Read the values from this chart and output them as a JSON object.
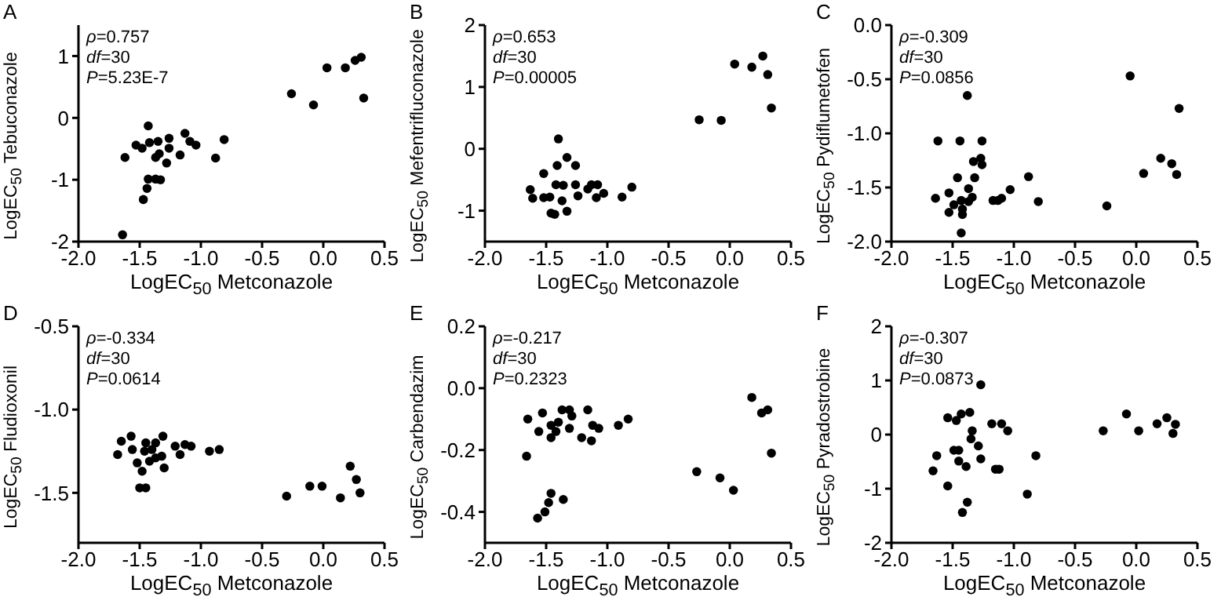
{
  "chart_data": [
    {
      "type": "scatter",
      "title": "A",
      "xlabel": "LogEC$_{50}$ Metconazole",
      "ylabel": "LogEC$_{50}$ Tebuconazole",
      "annotations": [
        "ρ=0.757",
        "df=30",
        "P=5.23E-7"
      ],
      "color": "#000000",
      "marker": "circle",
      "x": [
        -1.64,
        -1.62,
        -1.53,
        -1.48,
        -1.43,
        -1.42,
        -1.47,
        -1.44,
        -1.43,
        -1.37,
        -1.33,
        -1.35,
        -1.37,
        -1.34,
        -1.28,
        -1.26,
        -1.26,
        -1.17,
        -1.13,
        -1.09,
        -1.04,
        -0.88,
        -0.81,
        -0.26,
        -0.08,
        0.03,
        0.18,
        0.26,
        0.31,
        0.33
      ],
      "values": [
        -1.89,
        -0.64,
        -0.44,
        -0.49,
        -0.13,
        -0.4,
        -1.32,
        -1.14,
        -0.99,
        -0.99,
        -1.0,
        -0.38,
        -0.64,
        -0.58,
        -0.73,
        -0.49,
        -0.33,
        -0.6,
        -0.25,
        -0.38,
        -0.44,
        -0.65,
        -0.35,
        0.39,
        0.21,
        0.81,
        0.81,
        0.93,
        0.98,
        0.32
      ],
      "xlim": [
        -2,
        0.5
      ],
      "xticks": [
        {
          "value": -2,
          "label": "-2.0"
        },
        {
          "value": -1.5,
          "label": "-1.5"
        },
        {
          "value": -1,
          "label": "-1.0"
        },
        {
          "value": -0.5,
          "label": "-0.5"
        },
        {
          "value": 0,
          "label": "0.0"
        },
        {
          "value": 0.5,
          "label": "0.5"
        }
      ],
      "ylim": [
        -2,
        1.5
      ],
      "yticks": [
        -2,
        -1,
        0,
        1
      ]
    },
    {
      "type": "scatter",
      "title": "B",
      "xlabel": "LogEC$_{50}$ Metconazole",
      "ylabel": "LogEC$_{50}$ Mefentrifluconazole",
      "annotations": [
        "ρ=0.653",
        "df=30",
        "P=0.00005"
      ],
      "color": "#000000",
      "marker": "circle",
      "x": [
        -1.63,
        -1.61,
        -1.52,
        -1.52,
        -1.47,
        -1.46,
        -1.43,
        -1.41,
        -1.4,
        -1.42,
        -1.37,
        -1.36,
        -1.33,
        -1.33,
        -1.26,
        -1.26,
        -1.24,
        -1.16,
        -1.13,
        -1.09,
        -1.08,
        -1.03,
        -0.88,
        -0.8,
        -0.25,
        -0.07,
        0.04,
        0.18,
        0.27,
        0.31,
        0.34
      ],
      "values": [
        -0.66,
        -0.8,
        -0.4,
        -0.79,
        -0.78,
        -1.04,
        -1.06,
        -0.27,
        0.16,
        -0.58,
        -0.84,
        -0.59,
        -0.14,
        -1.01,
        -0.27,
        -0.58,
        -0.76,
        -0.65,
        -0.58,
        -0.79,
        -0.58,
        -0.72,
        -0.78,
        -0.62,
        0.47,
        0.46,
        1.37,
        1.32,
        1.5,
        1.2,
        0.66
      ],
      "xlim": [
        -2,
        0.5
      ],
      "xticks": [
        {
          "value": -2,
          "label": "-2.0"
        },
        {
          "value": -1.5,
          "label": "-1.5"
        },
        {
          "value": -1,
          "label": "-1.0"
        },
        {
          "value": -0.5,
          "label": "-0.5"
        },
        {
          "value": 0,
          "label": "0.0"
        },
        {
          "value": 0.5,
          "label": "0.5"
        }
      ],
      "ylim": [
        -1.5,
        2
      ],
      "yticks": [
        -1,
        0,
        1,
        2
      ]
    },
    {
      "type": "scatter",
      "title": "C",
      "xlabel": "LogEC$_{50}$ Metconazole",
      "ylabel": "LogEC$_{50}$ Pydiflumetofen",
      "annotations": [
        "ρ=-0.309",
        "df=30",
        "P=0.0856"
      ],
      "color": "#000000",
      "marker": "circle",
      "x": [
        -1.64,
        -1.62,
        -1.53,
        -1.53,
        -1.49,
        -1.46,
        -1.44,
        -1.43,
        -1.42,
        -1.42,
        -1.43,
        -1.38,
        -1.37,
        -1.37,
        -1.34,
        -1.33,
        -1.32,
        -1.26,
        -1.27,
        -1.26,
        -1.17,
        -1.13,
        -1.1,
        -1.03,
        -0.88,
        -0.8,
        -0.24,
        -0.05,
        0.06,
        0.2,
        0.29,
        0.33,
        0.35
      ],
      "values": [
        -1.6,
        -1.07,
        -1.55,
        -1.73,
        -1.66,
        -1.41,
        -1.07,
        -1.62,
        -1.7,
        -1.75,
        -1.92,
        -0.65,
        -1.51,
        -1.63,
        -1.59,
        -1.26,
        -1.41,
        -1.07,
        -1.23,
        -1.29,
        -1.62,
        -1.62,
        -1.6,
        -1.52,
        -1.4,
        -1.63,
        -1.67,
        -0.47,
        -1.37,
        -1.23,
        -1.28,
        -1.38,
        -0.77
      ],
      "xlim": [
        -2,
        0.5
      ],
      "xticks": [
        {
          "value": -2,
          "label": "-2.0"
        },
        {
          "value": -1.5,
          "label": "-1.5"
        },
        {
          "value": -1,
          "label": "-1.0"
        },
        {
          "value": -0.5,
          "label": "-0.5"
        },
        {
          "value": 0,
          "label": "0.0"
        },
        {
          "value": 0.5,
          "label": "0.5"
        }
      ],
      "ylim": [
        -2,
        0
      ],
      "yticks": [
        {
          "value": -2,
          "label": "-2.0"
        },
        {
          "value": -1.5,
          "label": "-1.5"
        },
        {
          "value": -1,
          "label": "-1.0"
        },
        {
          "value": -0.5,
          "label": "-0.5"
        },
        {
          "value": 0,
          "label": "0.0"
        }
      ]
    },
    {
      "type": "scatter",
      "title": "D",
      "xlabel": "LogEC$_{50}$ Metconazole",
      "ylabel": "LogEC$_{50}$ Fludioxonil",
      "annotations": [
        "ρ=-0.334",
        "df=30",
        "P=0.0614"
      ],
      "color": "#000000",
      "marker": "circle",
      "x": [
        -1.68,
        -1.65,
        -1.57,
        -1.56,
        -1.52,
        -1.5,
        -1.45,
        -1.48,
        -1.46,
        -1.45,
        -1.42,
        -1.4,
        -1.37,
        -1.37,
        -1.32,
        -1.31,
        -1.3,
        -1.21,
        -1.17,
        -1.13,
        -1.08,
        -0.93,
        -0.85,
        -0.3,
        -0.11,
        -0.01,
        0.14,
        0.22,
        0.27,
        0.3
      ],
      "values": [
        -1.27,
        -1.19,
        -1.16,
        -1.24,
        -1.32,
        -1.47,
        -1.47,
        -1.37,
        -1.25,
        -1.2,
        -1.31,
        -1.24,
        -1.2,
        -1.29,
        -1.28,
        -1.16,
        -1.35,
        -1.22,
        -1.27,
        -1.21,
        -1.22,
        -1.25,
        -1.24,
        -1.52,
        -1.46,
        -1.46,
        -1.53,
        -1.34,
        -1.42,
        -1.5
      ],
      "xlim": [
        -2,
        0.5
      ],
      "xticks": [
        {
          "value": -2,
          "label": "-2.0"
        },
        {
          "value": -1.5,
          "label": "-1.5"
        },
        {
          "value": -1,
          "label": "-1.0"
        },
        {
          "value": -0.5,
          "label": "-0.5"
        },
        {
          "value": 0,
          "label": "0.0"
        },
        {
          "value": 0.5,
          "label": "0.5"
        }
      ],
      "ylim": [
        -1.8,
        -0.5
      ],
      "yticks": [
        {
          "value": -1.5,
          "label": "-1.5"
        },
        {
          "value": -1,
          "label": "-1.0"
        },
        {
          "value": -0.5,
          "label": "-0.5"
        }
      ]
    },
    {
      "type": "scatter",
      "title": "E",
      "xlabel": "LogEC$_{50}$ Metconazole",
      "ylabel": "LogEC$_{50}$ Carbendazim",
      "annotations": [
        "ρ=-0.217",
        "df=30",
        "P=0.2323"
      ],
      "color": "#000000",
      "marker": "circle",
      "x": [
        -1.66,
        -1.65,
        -1.56,
        -1.53,
        -1.57,
        -1.51,
        -1.48,
        -1.46,
        -1.46,
        -1.46,
        -1.42,
        -1.4,
        -1.37,
        -1.36,
        -1.31,
        -1.31,
        -1.29,
        -1.21,
        -1.16,
        -1.13,
        -1.12,
        -1.07,
        -0.91,
        -0.83,
        -0.27,
        -0.08,
        0.03,
        0.18,
        0.26,
        0.31,
        0.34
      ],
      "values": [
        -0.22,
        -0.1,
        -0.14,
        -0.08,
        -0.42,
        -0.4,
        -0.37,
        -0.34,
        -0.12,
        -0.16,
        -0.14,
        -0.11,
        -0.07,
        -0.36,
        -0.07,
        -0.13,
        -0.09,
        -0.16,
        -0.07,
        -0.17,
        -0.12,
        -0.13,
        -0.12,
        -0.1,
        -0.27,
        -0.29,
        -0.33,
        -0.03,
        -0.08,
        -0.07,
        -0.21
      ],
      "xlim": [
        -2,
        0.5
      ],
      "xticks": [
        {
          "value": -2,
          "label": "-2.0"
        },
        {
          "value": -1.5,
          "label": "-1.5"
        },
        {
          "value": -1,
          "label": "-1.0"
        },
        {
          "value": -0.5,
          "label": "-0.5"
        },
        {
          "value": 0,
          "label": "0.0"
        },
        {
          "value": 0.5,
          "label": "0.5"
        }
      ],
      "ylim": [
        -0.5,
        0.2
      ],
      "yticks": [
        {
          "value": -0.4,
          "label": "-0.4"
        },
        {
          "value": -0.2,
          "label": "-0.2"
        },
        {
          "value": 0,
          "label": "0.0"
        },
        {
          "value": 0.2,
          "label": "0.2"
        }
      ]
    },
    {
      "type": "scatter",
      "title": "F",
      "xlabel": "LogEC$_{50}$ Metconazole",
      "ylabel": "LogEC$_{50}$ Pyradostrobine",
      "annotations": [
        "ρ=-0.307",
        "df=30",
        "P=0.0873"
      ],
      "color": "#000000",
      "marker": "circle",
      "x": [
        -1.66,
        -1.63,
        -1.54,
        -1.54,
        -1.49,
        -1.47,
        -1.45,
        -1.45,
        -1.43,
        -1.42,
        -1.39,
        -1.38,
        -1.36,
        -1.35,
        -1.34,
        -1.29,
        -1.27,
        -1.27,
        -1.18,
        -1.15,
        -1.12,
        -1.1,
        -1.05,
        -0.89,
        -0.82,
        -0.27,
        -0.08,
        0.02,
        0.17,
        0.25,
        0.3,
        0.32
      ],
      "values": [
        -0.67,
        -0.39,
        0.31,
        -0.95,
        -0.29,
        0.26,
        -0.29,
        -0.49,
        0.38,
        -1.44,
        -0.59,
        -1.25,
        0.41,
        -0.08,
        0.07,
        -0.21,
        0.92,
        -0.45,
        0.2,
        -0.64,
        -0.64,
        0.2,
        0.07,
        -1.1,
        -0.39,
        0.07,
        0.38,
        0.07,
        0.2,
        0.31,
        0.02,
        0.19
      ],
      "xlim": [
        -2,
        0.5
      ],
      "xticks": [
        {
          "value": -2,
          "label": "-2.0"
        },
        {
          "value": -1.5,
          "label": "-1.5"
        },
        {
          "value": -1,
          "label": "-1.0"
        },
        {
          "value": -0.5,
          "label": "-0.5"
        },
        {
          "value": 0,
          "label": "0.0"
        },
        {
          "value": 0.5,
          "label": "0.5"
        }
      ],
      "ylim": [
        -2,
        2
      ],
      "yticks": [
        -2,
        -1,
        0,
        1,
        2
      ]
    }
  ]
}
